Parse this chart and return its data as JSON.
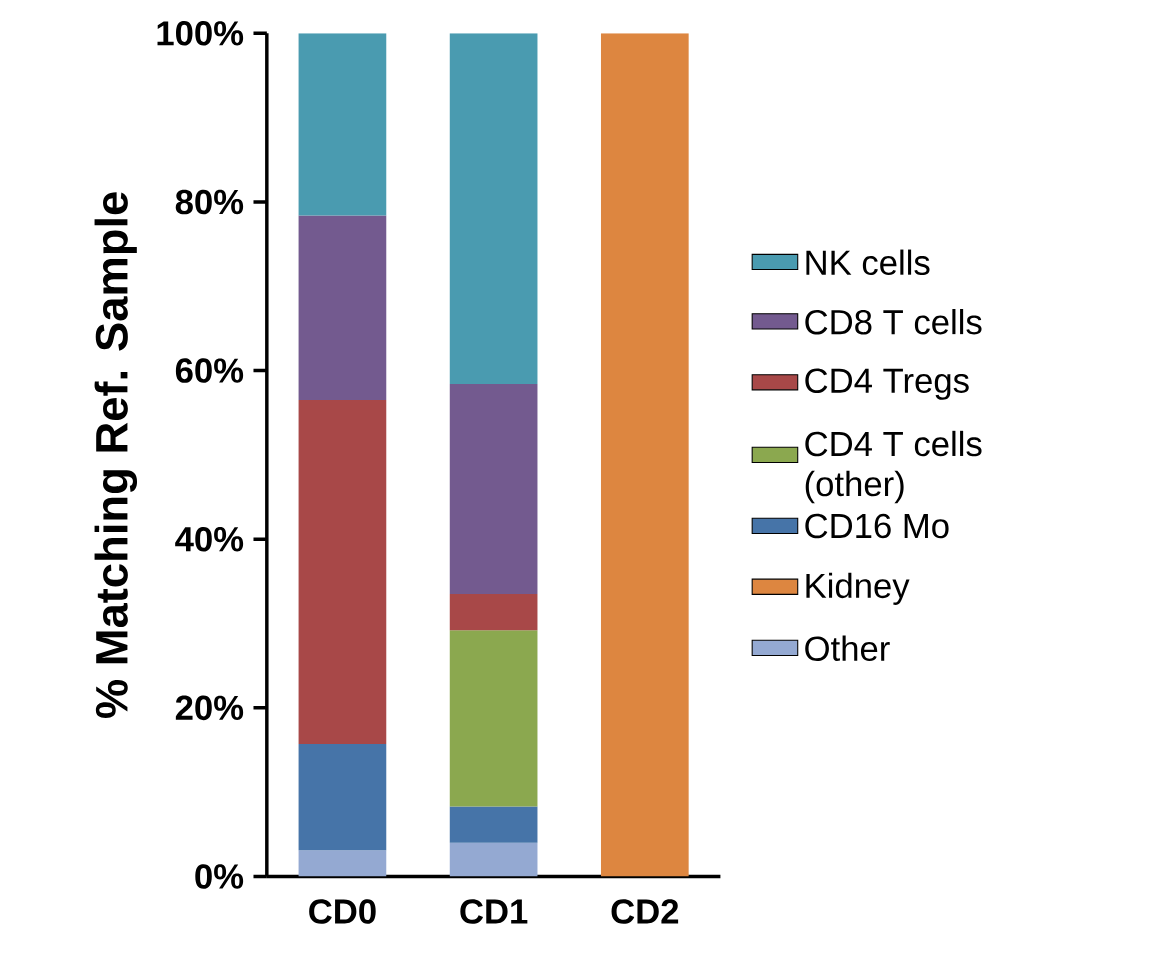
{
  "chart_data": {
    "type": "bar",
    "stacked": true,
    "ylabel": "% Matching Ref. Sample",
    "categories": [
      "CD0",
      "CD1",
      "CD2"
    ],
    "series": [
      {
        "name": "Other",
        "color": "#94a9d2",
        "values": [
          3.1,
          4.0,
          null
        ]
      },
      {
        "name": "Kidney",
        "color": "#dd8640",
        "values": [
          null,
          null,
          100
        ]
      },
      {
        "name": "CD16 Mo",
        "color": "#4674a8",
        "values": [
          12.6,
          4.3,
          null
        ]
      },
      {
        "name": "CD4 T cells (other)",
        "color": "#8ba84f",
        "values": [
          null,
          20.9,
          null
        ]
      },
      {
        "name": "CD4 Tregs",
        "color": "#a84848",
        "values": [
          40.8,
          4.3,
          null
        ]
      },
      {
        "name": "CD8 T cells",
        "color": "#735a8f",
        "values": [
          21.9,
          24.9,
          null
        ]
      },
      {
        "name": "NK cells",
        "color": "#4a9bb0",
        "values": [
          21.6,
          41.6,
          null
        ]
      }
    ],
    "ylim": [
      0,
      100
    ],
    "yticks": [
      {
        "value": 0,
        "label": "0%"
      },
      {
        "value": 20,
        "label": "20%"
      },
      {
        "value": 40,
        "label": "40%"
      },
      {
        "value": 60,
        "label": "60%"
      },
      {
        "value": 80,
        "label": "80%"
      },
      {
        "value": 100,
        "label": "100%"
      }
    ],
    "grid": false,
    "legend": "right"
  }
}
